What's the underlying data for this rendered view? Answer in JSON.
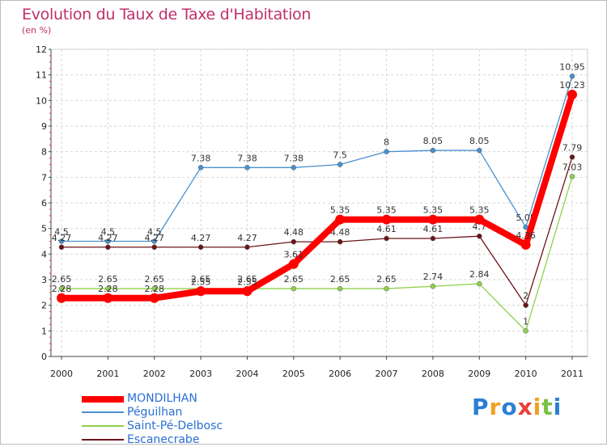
{
  "title": "Evolution du Taux de Taxe d'Habitation",
  "subtitle": "(en %)",
  "chart_data": {
    "type": "line",
    "title": "Evolution du Taux de Taxe d'Habitation",
    "ylabel": "(en %)",
    "xlabel": "",
    "x": [
      "2000",
      "2001",
      "2002",
      "2003",
      "2004",
      "2005",
      "2006",
      "2007",
      "2008",
      "2009",
      "2010",
      "2011"
    ],
    "ylim": [
      0,
      12
    ],
    "yticks": [
      "0",
      "1",
      "2",
      "3",
      "4",
      "5",
      "6",
      "7",
      "8",
      "9",
      "10",
      "11",
      "12"
    ],
    "series": [
      {
        "name": "Péguilhan",
        "color": "#4a90d0",
        "values": [
          4.5,
          4.5,
          4.5,
          7.38,
          7.38,
          7.38,
          7.5,
          8,
          8.05,
          8.05,
          5.05,
          10.95
        ],
        "labels": [
          "4.5",
          "4.5",
          "4.5",
          "7.38",
          "7.38",
          "7.38",
          "7.5",
          "8",
          "8.05",
          "8.05",
          "5.05",
          "10.95"
        ]
      },
      {
        "name": "Saint-Pé-Delbosc",
        "color": "#8ed14a",
        "values": [
          2.65,
          2.65,
          2.65,
          2.65,
          2.65,
          2.65,
          2.65,
          2.65,
          2.74,
          2.84,
          1,
          7.03
        ],
        "labels": [
          "2.65",
          "2.65",
          "2.65",
          "2.65",
          "2.65",
          "2.65",
          "2.65",
          "2.65",
          "2.74",
          "2.84",
          "1",
          "7.03"
        ]
      },
      {
        "name": "Escanecrabe",
        "color": "#6b1518",
        "values": [
          4.27,
          4.27,
          4.27,
          4.27,
          4.27,
          4.48,
          4.48,
          4.61,
          4.61,
          4.7,
          2,
          7.79
        ],
        "labels": [
          "4.27",
          "4.27",
          "4.27",
          "4.27",
          "4.27",
          "4.48",
          "4.48",
          "4.61",
          "4.61",
          "4.7",
          "2",
          "7.79"
        ]
      },
      {
        "name": "MONDILHAN",
        "color": "#ff0000",
        "values": [
          2.28,
          2.28,
          2.28,
          2.55,
          2.55,
          3.61,
          5.35,
          5.35,
          5.35,
          5.35,
          4.36,
          10.23
        ],
        "labels": [
          "2.28",
          "2.28",
          "2.28",
          "2.55",
          "2.55",
          "3.61",
          "5.35",
          "5.35",
          "5.35",
          "5.35",
          "4.36",
          "10.23"
        ]
      }
    ],
    "legend": [
      "MONDILHAN",
      "Péguilhan",
      "Saint-Pé-Delbosc",
      "Escanecrabe"
    ],
    "legend_position": "bottom-left"
  },
  "logo": {
    "letters": [
      "P",
      "r",
      "o",
      "x",
      "i",
      "t",
      "i"
    ],
    "colors": [
      "#2a7fd4",
      "#f0a020",
      "#2a7fd4",
      "#e8403a",
      "#f0a020",
      "#7ac143",
      "#2a7fd4"
    ]
  }
}
